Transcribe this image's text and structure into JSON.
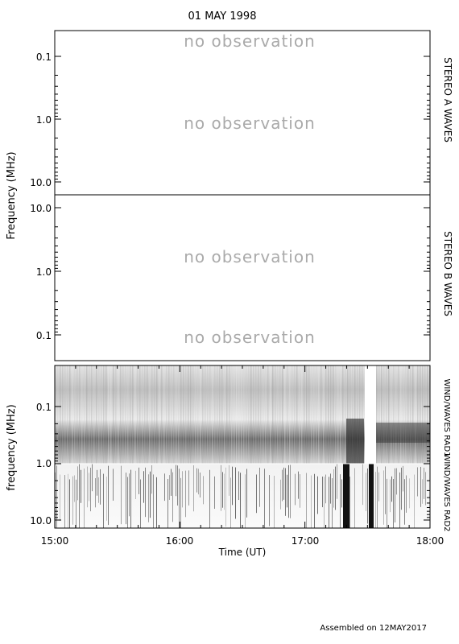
{
  "title": "01 MAY 1998",
  "footer": "Assembled on 12MAY2017",
  "no_observation_text": "no observation",
  "colors": {
    "frame": "#000000",
    "no_obs": "#aaaaaa",
    "background": "#ffffff"
  },
  "chart_data": [
    {
      "type": "heatmap",
      "name": "stereo-a",
      "side_label": "STEREO A WAVES",
      "ylabel": "",
      "yscale": "log",
      "yrange": [
        0.05,
        14
      ],
      "yticks": [
        "0.1",
        "1.0",
        "10.0"
      ],
      "inverted": true,
      "status": [
        "no observation",
        "no observation"
      ]
    },
    {
      "type": "heatmap",
      "name": "stereo-b",
      "side_label": "STEREO B WAVES",
      "ylabel": "",
      "yscale": "log",
      "yrange": [
        0.05,
        14
      ],
      "yticks": [
        "10.0",
        "1.0",
        "0.1"
      ],
      "inverted": false,
      "status": [
        "no observation",
        "no observation"
      ]
    },
    {
      "type": "heatmap",
      "name": "wind-waves",
      "side_labels": [
        "WIND/WAVES RAD1",
        "WIND/WAVES RAD2"
      ],
      "ylabel": "frequency (MHz)",
      "yscale": "log",
      "yrange": [
        0.02,
        14
      ],
      "yticks": [
        "0.1",
        "1.0",
        "10.0"
      ],
      "inverted": true,
      "data_gap_utc": [
        "17:27",
        "17:34"
      ],
      "xticks": [
        "15:00",
        "16:00",
        "17:00",
        "18:00"
      ],
      "xrange": [
        "15:00",
        "18:00"
      ],
      "xlabel": "Time (UT)"
    }
  ],
  "shared_ylabel": "Frequency (MHz)"
}
